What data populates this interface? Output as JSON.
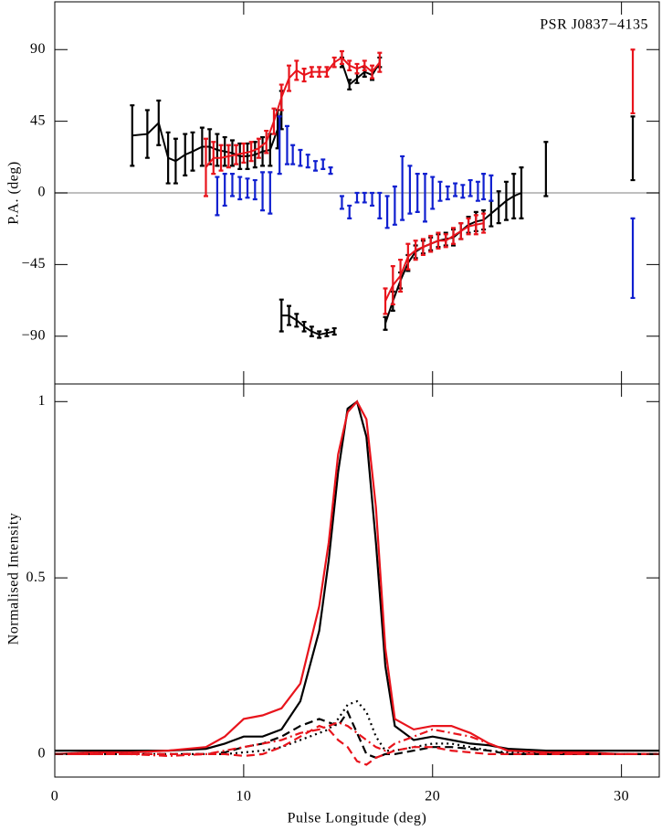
{
  "chart_data": [
    {
      "type": "errorbar",
      "annotation": "PSR J0837−4135",
      "ylabel": "P.A. (deg)",
      "xlim": [
        0,
        32
      ],
      "xticks": [
        0,
        10,
        20,
        30
      ],
      "xtick_labels": false,
      "ylim": [
        -120,
        120
      ],
      "yticks": [
        {
          "value": -90,
          "label": "−90"
        },
        {
          "value": -45,
          "label": "−45"
        },
        0,
        45,
        90
      ],
      "hline": 0,
      "hline_color": "#aaaaaa",
      "series": [
        {
          "color": "#000000",
          "line": true,
          "x": [
            4.1,
            4.9,
            5.5,
            6.0,
            6.4,
            6.9,
            7.3,
            7.8,
            8.2,
            8.6,
            9.0,
            9.4,
            9.8,
            10.2,
            10.6,
            11.0,
            11.4,
            11.8,
            12.0,
            12.0,
            12.0,
            12.4,
            12.8,
            13.2,
            13.6,
            14.0,
            14.4,
            14.8,
            15.0,
            15.2,
            15.6,
            16.0,
            16.4,
            16.8,
            17.2,
            17.4,
            17.5,
            17.9,
            18.3,
            18.7,
            19.1,
            19.5,
            19.9,
            20.3,
            20.7,
            21.1,
            21.5,
            21.9,
            22.3,
            22.7,
            23.1,
            23.5,
            23.9,
            24.3,
            24.7,
            25.3,
            26.0,
            28.3,
            30.6
          ],
          "values": [
            36,
            37,
            44,
            22,
            20,
            24,
            26,
            29,
            29,
            27,
            26,
            25,
            23,
            23,
            24,
            26,
            27,
            40,
            52,
            null,
            -77,
            -77,
            -80,
            -84,
            -87,
            -89,
            -88,
            -87,
            null,
            82,
            68,
            72,
            76,
            74,
            82,
            null,
            -82,
            -68,
            -55,
            -44,
            -37,
            -34,
            -32,
            -30,
            -29,
            -28,
            -24,
            -20,
            -18,
            -17,
            -13,
            -9,
            -5,
            -2,
            0,
            null,
            15,
            null,
            28
          ],
          "errors": [
            19,
            15,
            14,
            16,
            14,
            13,
            12,
            12,
            11,
            10,
            9,
            8,
            8,
            8,
            8,
            9,
            10,
            12,
            12,
            null,
            10,
            6,
            4,
            3,
            3,
            2,
            2,
            2,
            null,
            3,
            3,
            3,
            3,
            3,
            3,
            null,
            4,
            6,
            5,
            5,
            4,
            4,
            4,
            4,
            4,
            5,
            5,
            5,
            6,
            6,
            8,
            10,
            12,
            14,
            16,
            null,
            17,
            null,
            20
          ]
        },
        {
          "color": "#e8141c",
          "line": true,
          "x": [
            8.0,
            8.4,
            8.8,
            9.2,
            9.6,
            10.0,
            10.4,
            10.8,
            11.2,
            11.6,
            12.0,
            12.4,
            12.8,
            13.2,
            13.6,
            14.0,
            14.4,
            14.8,
            15.2,
            15.6,
            16.0,
            16.4,
            16.8,
            17.2,
            17.4,
            17.5,
            17.9,
            18.3,
            18.7,
            19.1,
            19.5,
            19.9,
            20.3,
            20.7,
            21.1,
            21.5,
            21.9,
            22.3,
            22.7,
            26.0,
            30.6
          ],
          "values": [
            16,
            22,
            22,
            23,
            24,
            25,
            26,
            28,
            32,
            45,
            60,
            72,
            77,
            74,
            76,
            76,
            76,
            82,
            85,
            80,
            78,
            80,
            76,
            82,
            null,
            -68,
            -58,
            -52,
            -40,
            -36,
            -34,
            -32,
            -30,
            -30,
            -27,
            -24,
            -21,
            -20,
            -19,
            null,
            70
          ],
          "errors": [
            18,
            10,
            8,
            7,
            6,
            6,
            6,
            6,
            7,
            8,
            8,
            8,
            6,
            4,
            3,
            3,
            3,
            3,
            4,
            3,
            3,
            3,
            4,
            6,
            null,
            8,
            12,
            10,
            8,
            6,
            5,
            5,
            5,
            4,
            5,
            5,
            5,
            6,
            6,
            null,
            20
          ]
        },
        {
          "color": "#1020d0",
          "line": false,
          "x": [
            8.6,
            9.0,
            9.4,
            9.8,
            10.2,
            10.6,
            11.0,
            11.4,
            11.9,
            12.3,
            12.6,
            13.0,
            13.4,
            13.8,
            14.2,
            14.6,
            15.2,
            15.6,
            16.0,
            16.4,
            16.8,
            17.2,
            17.6,
            18.0,
            18.4,
            18.8,
            19.2,
            19.6,
            20.0,
            20.4,
            20.8,
            21.2,
            21.6,
            22.0,
            22.4,
            22.7,
            23.1,
            30.6
          ],
          "values": [
            -2,
            2,
            5,
            3,
            3,
            2,
            1,
            0,
            30,
            30,
            24,
            22,
            20,
            17,
            18,
            14,
            -6,
            -12,
            -3,
            -3,
            -4,
            -8,
            -12,
            -8,
            3,
            2,
            0,
            -3,
            0,
            1,
            0,
            2,
            1,
            3,
            1,
            4,
            3,
            -41
          ],
          "errors": [
            12,
            10,
            7,
            7,
            6,
            6,
            12,
            13,
            18,
            12,
            6,
            5,
            4,
            3,
            3,
            2,
            4,
            4,
            3,
            3,
            4,
            8,
            10,
            12,
            20,
            15,
            12,
            15,
            10,
            6,
            4,
            4,
            4,
            5,
            6,
            8,
            8,
            25
          ]
        }
      ]
    },
    {
      "type": "line",
      "xlabel": "Pulse Longitude (deg)",
      "ylabel": "Normalised Intensity",
      "xlim": [
        0,
        32
      ],
      "xticks": [
        0,
        10,
        20,
        30
      ],
      "xtick_labels": true,
      "ylim": [
        -0.065,
        1.05
      ],
      "yticks": [
        0,
        0.5,
        1
      ],
      "x": [
        0,
        2,
        4,
        6,
        8,
        9,
        10,
        11,
        12,
        13,
        14,
        14.5,
        15,
        15.5,
        16,
        16.5,
        17,
        17.5,
        18,
        19,
        20,
        21,
        22,
        23,
        24,
        26,
        28,
        30,
        32
      ],
      "series": [
        {
          "color": "#000000",
          "linestyle": "solid",
          "values": [
            0.01,
            0.01,
            0.01,
            0.01,
            0.015,
            0.03,
            0.05,
            0.05,
            0.07,
            0.15,
            0.35,
            0.55,
            0.8,
            0.98,
            1.0,
            0.9,
            0.6,
            0.25,
            0.08,
            0.04,
            0.05,
            0.04,
            0.03,
            0.025,
            0.015,
            0.01,
            0.01,
            0.01,
            0.01
          ]
        },
        {
          "color": "#e8141c",
          "linestyle": "solid",
          "values": [
            0.0,
            0.005,
            0.005,
            0.01,
            0.02,
            0.05,
            0.1,
            0.11,
            0.13,
            0.2,
            0.42,
            0.6,
            0.85,
            0.97,
            1.0,
            0.95,
            0.7,
            0.3,
            0.1,
            0.07,
            0.08,
            0.08,
            0.06,
            0.03,
            0.01,
            0.005,
            0.005,
            0.0,
            0.0
          ]
        },
        {
          "color": "#000000",
          "linestyle": "dashed",
          "values": [
            0,
            0,
            0,
            0,
            0,
            0.005,
            0.02,
            0.03,
            0.05,
            0.08,
            0.1,
            0.09,
            0.08,
            0.12,
            0.06,
            0.0,
            -0.01,
            0,
            0,
            0.01,
            0.02,
            0.02,
            0.015,
            0.01,
            0,
            0,
            0,
            0,
            0
          ]
        },
        {
          "color": "#000000",
          "linestyle": "dotted",
          "values": [
            0,
            0,
            0,
            0,
            0,
            0,
            0.005,
            0.01,
            0.02,
            0.04,
            0.06,
            0.07,
            0.1,
            0.14,
            0.15,
            0.12,
            0.05,
            0.01,
            0.01,
            0.02,
            0.03,
            0.03,
            0.02,
            0.01,
            0.005,
            0,
            0,
            0,
            0
          ]
        },
        {
          "color": "#e8141c",
          "linestyle": "dashed",
          "values": [
            0,
            0,
            0,
            0,
            0,
            0,
            -0.005,
            0.0,
            0.02,
            0.05,
            0.08,
            0.07,
            0.04,
            0.02,
            -0.02,
            -0.03,
            -0.01,
            0,
            0.01,
            0.02,
            0.02,
            0.01,
            0.005,
            0,
            0,
            0,
            0,
            0,
            0
          ]
        },
        {
          "color": "#e8141c",
          "linestyle": "dashdot",
          "values": [
            0,
            0,
            0,
            -0.005,
            0,
            0.01,
            0.02,
            0.03,
            0.04,
            0.06,
            0.07,
            0.08,
            0.09,
            0.08,
            0.06,
            0.04,
            0.02,
            0.01,
            0.03,
            0.05,
            0.07,
            0.06,
            0.05,
            0.03,
            0.01,
            0.005,
            0,
            0,
            0
          ]
        }
      ]
    }
  ]
}
